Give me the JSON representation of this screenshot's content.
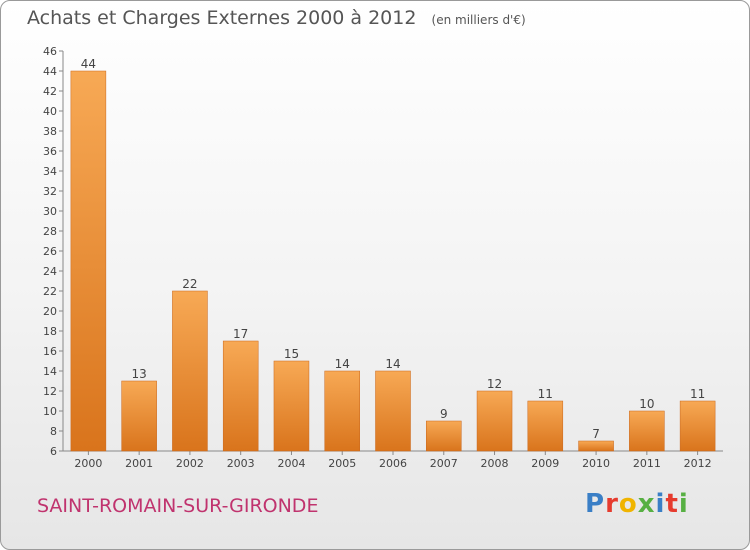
{
  "header": {
    "title": "Achats et Charges Externes 2000 à 2012",
    "subtitle": "(en milliers d'€)"
  },
  "footer": {
    "commune": "SAINT-ROMAIN-SUR-GIRONDE",
    "brand": "Proxiti"
  },
  "colors": {
    "bar_top": "#f7a955",
    "bar_bottom": "#d9741c",
    "commune_text": "#c0336e"
  },
  "chart_data": {
    "type": "bar",
    "title": "Achats et Charges Externes 2000 à 2012",
    "subtitle": "(en milliers d'€)",
    "xlabel": "",
    "ylabel": "",
    "categories": [
      "2000",
      "2001",
      "2002",
      "2003",
      "2004",
      "2005",
      "2006",
      "2007",
      "2008",
      "2009",
      "2010",
      "2011",
      "2012"
    ],
    "values": [
      44,
      13,
      22,
      17,
      15,
      14,
      14,
      9,
      12,
      11,
      7,
      10,
      11
    ],
    "ylim": [
      6,
      46
    ],
    "yticks": [
      6,
      8,
      10,
      12,
      14,
      16,
      18,
      20,
      22,
      24,
      26,
      28,
      30,
      32,
      34,
      36,
      38,
      40,
      42,
      44,
      46
    ],
    "grid": false,
    "legend": "none"
  }
}
